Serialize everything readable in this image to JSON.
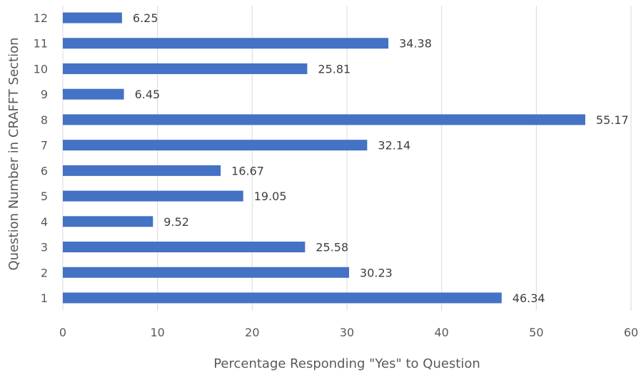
{
  "chart_data": {
    "type": "bar",
    "orientation": "horizontal",
    "title": "",
    "xlabel": "Percentage Responding \"Yes\" to Question",
    "ylabel": "Question Number  in CRAFFT Section",
    "categories": [
      "1",
      "2",
      "3",
      "4",
      "5",
      "6",
      "7",
      "8",
      "9",
      "10",
      "11",
      "12"
    ],
    "values": [
      46.34,
      30.23,
      25.58,
      9.52,
      19.05,
      16.67,
      32.14,
      55.17,
      6.45,
      25.81,
      34.38,
      6.25
    ],
    "data_labels": [
      "46.34",
      "30.23",
      "25.58",
      "9.52",
      "19.05",
      "16.67",
      "32.14",
      "55.17",
      "6.45",
      "25.81",
      "34.38",
      "6.25"
    ],
    "xlim": [
      0,
      60
    ],
    "xticks": [
      0,
      10,
      20,
      30,
      40,
      50,
      60
    ],
    "xtick_labels": [
      "0",
      "10",
      "20",
      "30",
      "40",
      "50",
      "60"
    ],
    "grid": true,
    "legend": "none",
    "bar_color": "#4472c4"
  }
}
